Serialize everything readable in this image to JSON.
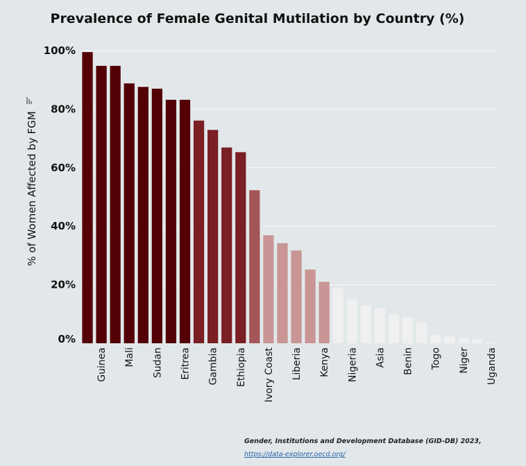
{
  "chart_data": {
    "type": "bar",
    "title": "Prevalence of Female Genital Mutilation by Country (%)",
    "ylabel": "% of Women Affected by FGM",
    "xlabel": "",
    "ylim": [
      0,
      100
    ],
    "yticks": [
      "0%",
      "20%",
      "40%",
      "60%",
      "80%",
      "100%"
    ],
    "grid": true,
    "categories": [
      "",
      "Guinea",
      "",
      "Mali",
      "",
      "Sudan",
      "",
      "Eritrea",
      "",
      "Gambia",
      "",
      "Ethiopia",
      "",
      "Ivory Coast",
      "",
      "Liberia",
      "",
      "Kenya",
      "",
      "Nigeria",
      "",
      "Asia",
      "",
      "Benin",
      "",
      "Togo",
      "",
      "Niger",
      "",
      "Uganda"
    ],
    "values": [
      99.5,
      94.8,
      94.8,
      88.8,
      87.6,
      87.0,
      83.2,
      83.2,
      76.1,
      72.9,
      66.9,
      65.3,
      52.3,
      36.9,
      34.2,
      31.7,
      25.2,
      21.0,
      18.8,
      15.0,
      12.9,
      12.0,
      9.8,
      9.0,
      7.2,
      2.8,
      2.4,
      1.8,
      1.4,
      0.3
    ],
    "colors": [
      "#530006",
      "#530006",
      "#530006",
      "#530006",
      "#530006",
      "#530006",
      "#530006",
      "#530006",
      "#7a1f24",
      "#7a1f24",
      "#7a1f24",
      "#7a1f24",
      "#a45557",
      "#c99595",
      "#c99595",
      "#c99595",
      "#c99595",
      "#c99595",
      "#f0f0f0",
      "#f0f0f0",
      "#f0f0f0",
      "#f0f0f0",
      "#f0f0f0",
      "#f0f0f0",
      "#f0f0f0",
      "#f0f0f0",
      "#f0f0f0",
      "#f0f0f0",
      "#f0f0f0",
      "#f0f0f0"
    ]
  },
  "source": {
    "text": "Gender, Institutions and Development Database (GID-DB) 2023,",
    "link": "https://data-explorer.oecd.org/"
  },
  "background": "#e2e8ea",
  "gridline_color": "#f4f4f4"
}
